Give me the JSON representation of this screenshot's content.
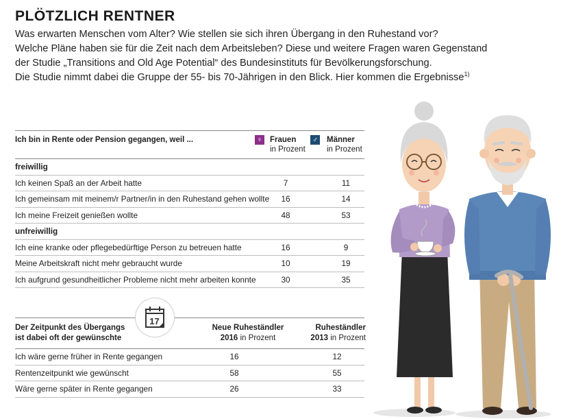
{
  "title": "PLÖTZLICH RENTNER",
  "intro": {
    "lines": [
      "Was erwarten Menschen vom Alter? Wie stellen sie sich ihren Übergang in den Ruhestand vor?",
      "Welche Pläne haben sie für die Zeit nach dem Arbeitsleben? Diese und weitere Fragen waren Gegenstand",
      "der Studie „Transitions and Old Age Potential“ des Bundesinstituts für Bevölkerungsforschung.",
      "Die Studie nimmt dabei die Gruppe der 55- bis 70-Jährigen in den Blick. Hier kommen die Ergebnisse"
    ],
    "footnote": "1)"
  },
  "table1": {
    "question": "Ich bin in Rente oder Pension gegangen, weil ...",
    "col_women": {
      "name": "Frauen",
      "unit": "in Prozent",
      "symbol": "♀"
    },
    "col_men": {
      "name": "Männer",
      "unit": "in Prozent",
      "symbol": "♂"
    },
    "sections": [
      {
        "label": "freiwillig",
        "rows": [
          {
            "label": "Ich keinen Spaß an der Arbeit hatte",
            "women": "7",
            "men": "11"
          },
          {
            "label": "Ich gemeinsam mit meinem/r Partner/in in den Ruhestand gehen wollte",
            "women": "16",
            "men": "14"
          },
          {
            "label": "Ich meine Freizeit genießen wollte",
            "women": "48",
            "men": "53"
          }
        ]
      },
      {
        "label": "unfreiwillig",
        "rows": [
          {
            "label": "Ich eine kranke oder pflegebedürftige Person zu betreuen hatte",
            "women": "16",
            "men": "9"
          },
          {
            "label": "Meine Arbeitskraft nicht mehr gebraucht wurde",
            "women": "10",
            "men": "19"
          },
          {
            "label": "Ich aufgrund gesundheitlicher Probleme nicht mehr arbeiten konnte",
            "women": "30",
            "men": "35"
          }
        ]
      }
    ]
  },
  "calendar_icon": {
    "name": "calendar-icon",
    "day": "17"
  },
  "table2": {
    "question_line1": "Der Zeitpunkt des Übergangs",
    "question_line2": "ist dabei oft der gewünschte",
    "col1_line1": "Neue Ruheständler",
    "col1_year": "2016",
    "col1_unit": "in Prozent",
    "col2_line1": "Ruheständler",
    "col2_year": "2013",
    "col2_unit": "in Prozent",
    "rows": [
      {
        "label": "Ich wäre gerne früher in Rente gegangen",
        "v2016": "16",
        "v2013": "12"
      },
      {
        "label": "Rentenzeitpunkt wie gewünscht",
        "v2016": "58",
        "v2013": "55"
      },
      {
        "label": "Wäre gerne später in Rente gegangen",
        "v2016": "26",
        "v2013": "33"
      }
    ]
  },
  "colors": {
    "women_accent": "#8c2f8a",
    "men_accent": "#1d4b72",
    "rule": "#bdbdbd"
  }
}
